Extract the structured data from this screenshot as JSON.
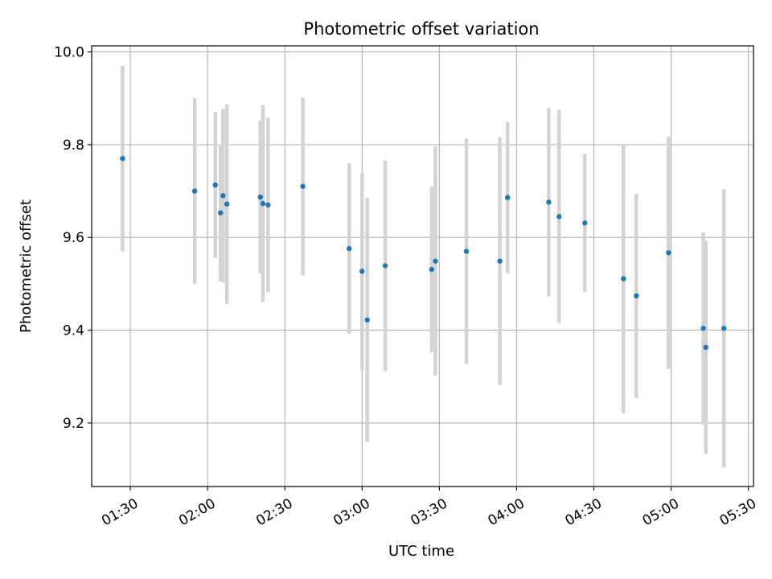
{
  "chart_data": {
    "type": "scatter",
    "title": "Photometric offset variation",
    "xlabel": "UTC time",
    "ylabel": "Photometric offset",
    "x_ticks": [
      "01:30",
      "02:00",
      "02:30",
      "03:00",
      "03:30",
      "04:00",
      "04:30",
      "05:00",
      "05:30"
    ],
    "y_ticks": [
      9.2,
      9.4,
      9.6,
      9.8,
      10.0
    ],
    "xlim": [
      "01:15",
      "05:32"
    ],
    "ylim": [
      9.063,
      10.013
    ],
    "grid": true,
    "colors": {
      "point": "#1f77b4",
      "errorbar": "#d3d3d3",
      "grid": "#b0b0b0"
    },
    "points": [
      {
        "time": "01:27:00",
        "y": 9.77,
        "yerr": 0.2
      },
      {
        "time": "01:55:00",
        "y": 9.7,
        "yerr": 0.2
      },
      {
        "time": "02:03:00",
        "y": 9.713,
        "yerr": 0.157
      },
      {
        "time": "02:05:00",
        "y": 9.653,
        "yerr": 0.148
      },
      {
        "time": "02:06:00",
        "y": 9.69,
        "yerr": 0.187
      },
      {
        "time": "02:07:30",
        "y": 9.672,
        "yerr": 0.215
      },
      {
        "time": "02:20:30",
        "y": 9.687,
        "yerr": 0.165
      },
      {
        "time": "02:21:30",
        "y": 9.673,
        "yerr": 0.212
      },
      {
        "time": "02:23:30",
        "y": 9.67,
        "yerr": 0.188
      },
      {
        "time": "02:37:00",
        "y": 9.71,
        "yerr": 0.192
      },
      {
        "time": "02:55:00",
        "y": 9.576,
        "yerr": 0.184
      },
      {
        "time": "03:00:00",
        "y": 9.527,
        "yerr": 0.212
      },
      {
        "time": "03:02:00",
        "y": 9.422,
        "yerr": 0.263
      },
      {
        "time": "03:09:00",
        "y": 9.539,
        "yerr": 0.227
      },
      {
        "time": "03:27:00",
        "y": 9.531,
        "yerr": 0.179
      },
      {
        "time": "03:28:30",
        "y": 9.549,
        "yerr": 0.247
      },
      {
        "time": "03:40:30",
        "y": 9.57,
        "yerr": 0.243
      },
      {
        "time": "03:53:30",
        "y": 9.549,
        "yerr": 0.267
      },
      {
        "time": "03:56:30",
        "y": 9.686,
        "yerr": 0.163
      },
      {
        "time": "04:12:30",
        "y": 9.676,
        "yerr": 0.203
      },
      {
        "time": "04:16:30",
        "y": 9.645,
        "yerr": 0.23
      },
      {
        "time": "04:26:30",
        "y": 9.631,
        "yerr": 0.149
      },
      {
        "time": "04:41:30",
        "y": 9.511,
        "yerr": 0.29
      },
      {
        "time": "04:46:30",
        "y": 9.474,
        "yerr": 0.22
      },
      {
        "time": "04:59:00",
        "y": 9.567,
        "yerr": 0.25
      },
      {
        "time": "05:12:30",
        "y": 9.404,
        "yerr": 0.207
      },
      {
        "time": "05:13:30",
        "y": 9.363,
        "yerr": 0.23
      },
      {
        "time": "05:20:30",
        "y": 9.404,
        "yerr": 0.3
      }
    ]
  }
}
